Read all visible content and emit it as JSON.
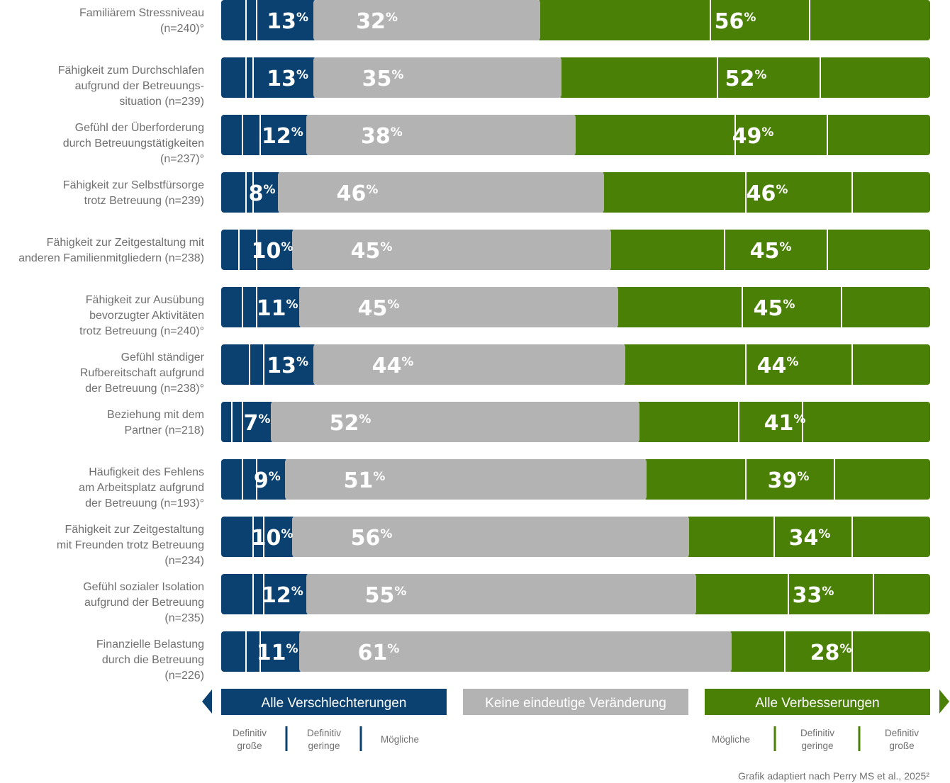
{
  "chart_data": {
    "type": "bar",
    "stacked": true,
    "orientation": "horizontal",
    "categories": [
      [
        "Familiärem Stressniveau",
        "(n=240)°"
      ],
      [
        "Fähigkeit zum Durchschlafen",
        "aufgrund der Betreuungs-",
        "situation (n=239)"
      ],
      [
        "Gefühl der Überforderung",
        "durch Betreuungstätigkeiten",
        "(n=237)°"
      ],
      [
        "Fähigkeit zur Selbstfürsorge",
        "trotz Betreuung (n=239)"
      ],
      [
        "Fähigkeit zur Zeitgestaltung mit",
        "anderen Familienmitgliedern (n=238)"
      ],
      [
        "Fähigkeit zur Ausübung",
        "bevorzugter Aktivitäten",
        "trotz Betreuung (n=240)°"
      ],
      [
        "Gefühl ständiger",
        "Rufbereitschaft aufgrund",
        "der Betreuung (n=238)°"
      ],
      [
        "Beziehung mit dem",
        "Partner (n=218)"
      ],
      [
        "Häufigkeit des Fehlens",
        "am Arbeitsplatz aufgrund",
        "der Betreuung (n=193)°"
      ],
      [
        "Fähigkeit zur Zeitgestaltung",
        "mit Freunden trotz Betreuung",
        "(n=234)"
      ],
      [
        "Gefühl sozialer Isolation",
        "aufgrund der Betreuung",
        "(n=235)"
      ],
      [
        "Finanzielle Belastung",
        "durch die Betreuung",
        "(n=226)"
      ]
    ],
    "series": [
      {
        "name": "Alle Verschlechterungen",
        "color": "#0b4170",
        "values": [
          13,
          13,
          12,
          8,
          10,
          11,
          13,
          7,
          9,
          10,
          12,
          11
        ]
      },
      {
        "name": "Keine eindeutige Veränderung",
        "color": "#b3b3b3",
        "values": [
          32,
          35,
          38,
          46,
          45,
          45,
          44,
          52,
          51,
          56,
          55,
          61
        ]
      },
      {
        "name": "Alle Verbesserungen",
        "color": "#4a8005",
        "values": [
          56,
          52,
          49,
          46,
          45,
          45,
          44,
          41,
          39,
          34,
          33,
          28
        ]
      }
    ],
    "worse_breakdown": [
      [
        3.5,
        1.5,
        8
      ],
      [
        3.5,
        1,
        8.5
      ],
      [
        3,
        2.5,
        6.5
      ],
      [
        3.5,
        1,
        3.5
      ],
      [
        2.5,
        2.5,
        5
      ],
      [
        3,
        2,
        6
      ],
      [
        4,
        2,
        7
      ],
      [
        1.5,
        1.5,
        4
      ],
      [
        3,
        2,
        4
      ],
      [
        4.5,
        1.5,
        4
      ],
      [
        4.5,
        1.5,
        6
      ],
      [
        3.5,
        2,
        5.5
      ]
    ],
    "better_breakdown": [
      [
        24,
        14,
        17.5
      ],
      [
        22,
        14.5,
        15.5
      ],
      [
        22.5,
        13,
        14.5
      ],
      [
        20,
        15,
        11
      ],
      [
        16,
        14.5,
        14.5
      ],
      [
        17.5,
        14,
        12.5
      ],
      [
        17,
        15,
        11.5
      ],
      [
        14,
        9,
        18
      ],
      [
        14,
        12.5,
        13.5
      ],
      [
        12,
        11,
        11
      ],
      [
        13,
        12,
        8
      ],
      [
        7.5,
        9.5,
        11
      ]
    ],
    "value_unit": "%",
    "xlim": [
      0,
      100
    ],
    "sub_legend_worse": [
      "Definitiv große",
      "Definitiv geringe",
      "Mögliche"
    ],
    "sub_legend_better": [
      "Mögliche",
      "Definitiv geringe",
      "Definitiv große"
    ],
    "source": "Grafik adaptiert nach Perry MS et al., 2025²"
  },
  "legend": {
    "worse_label": "Alle Verschlechterungen",
    "neutral_label": "Keine eindeutige Veränderung",
    "better_label": "Alle Verbesserungen",
    "worse_sub": [
      [
        "Definitiv",
        "große"
      ],
      [
        "Definitiv",
        "geringe"
      ],
      [
        "Mögliche"
      ]
    ],
    "better_sub": [
      [
        "Mögliche"
      ],
      [
        "Definitiv",
        "geringe"
      ],
      [
        "Definitiv",
        "große"
      ]
    ]
  },
  "colors": {
    "worse": "#0b4170",
    "neutral": "#b3b3b3",
    "better": "#4a8005"
  }
}
